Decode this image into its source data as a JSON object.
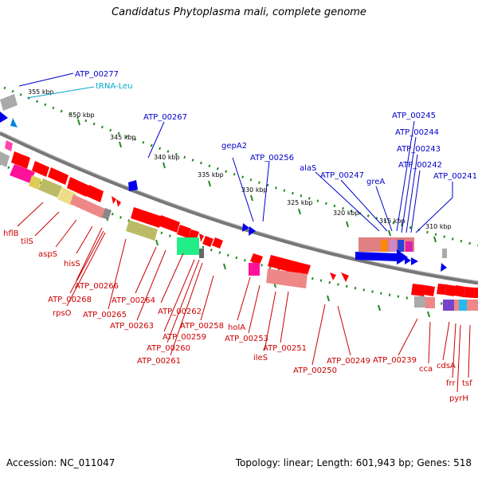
{
  "title": "Candidatus Phytoplasma mali, complete genome",
  "footer": {
    "accession": "Accession: NC_011047",
    "summary": "Topology: linear; Length: 601,943 bp; Genes: 518"
  },
  "colors": {
    "forward_label": "#0000cc",
    "reverse_label": "#cc0000",
    "trna_label": "#00aacc",
    "backbone": "#777777",
    "tick": "#228822",
    "forward_gene": "#ff0000",
    "reverse_gene": "#0000ee"
  },
  "ticks": {
    "outer": [
      "355 kbp",
      "350 kbp",
      "345 kbp",
      "340 kbp",
      "335 kbp",
      "330 kbp",
      "325 kbp",
      "320 kbp",
      "315 kbp",
      "310 kbp"
    ]
  },
  "labels": {
    "forward": [
      "ATP_00277",
      "tRNA-Leu",
      "ATP_00267",
      "gepA2",
      "ATP_00256",
      "alaS",
      "ATP_00247",
      "greA",
      "ATP_00245",
      "ATP_00244",
      "ATP_00243",
      "ATP_00242",
      "ATP_00241"
    ],
    "reverse": [
      "hflB",
      "tilS",
      "aspS",
      "hisS",
      "ATP_00266",
      "ATP_00268",
      "rpsO",
      "ATP_00265",
      "ATP_00264",
      "ATP_00263",
      "ATP_00262",
      "ATP_00259",
      "ATP_00260",
      "ATP_00261",
      "ATP_00258",
      "holA",
      "ATP_00253",
      "ileS",
      "ATP_00251",
      "ATP_00250",
      "ATP_00249",
      "ATP_00239",
      "cca",
      "cdsA",
      "frr",
      "pyrH",
      "tsf"
    ]
  }
}
